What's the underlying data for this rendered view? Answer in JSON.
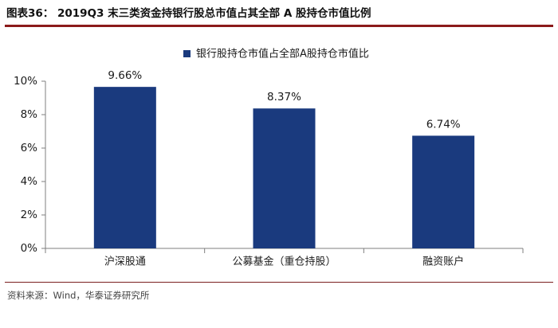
{
  "figure": {
    "title": "图表36：  2019Q3 末三类资金持银行股总市值占其全部 A 股持仓市值比例",
    "source": "资料来源：Wind，华泰证券研究所"
  },
  "chart_data": {
    "type": "bar",
    "categories": [
      "沪深股通",
      "公募基金（重仓持股）",
      "融资账户"
    ],
    "series": [
      {
        "name": "银行股持仓市值占全部A股持仓市值比",
        "values": [
          9.66,
          8.37,
          6.74
        ],
        "labels": [
          "9.66%",
          "8.37%",
          "6.74%"
        ]
      }
    ],
    "ylim": [
      0,
      10
    ],
    "yticks": [
      0,
      2,
      4,
      6,
      8,
      10
    ],
    "ytick_labels": [
      "0%",
      "2%",
      "4%",
      "6%",
      "8%",
      "10%"
    ],
    "xlabel": "",
    "ylabel": "",
    "legend_position": "top-center",
    "grid": false,
    "colors": {
      "bar": "#1a3a7e",
      "axis": "#7f7f7f"
    }
  }
}
